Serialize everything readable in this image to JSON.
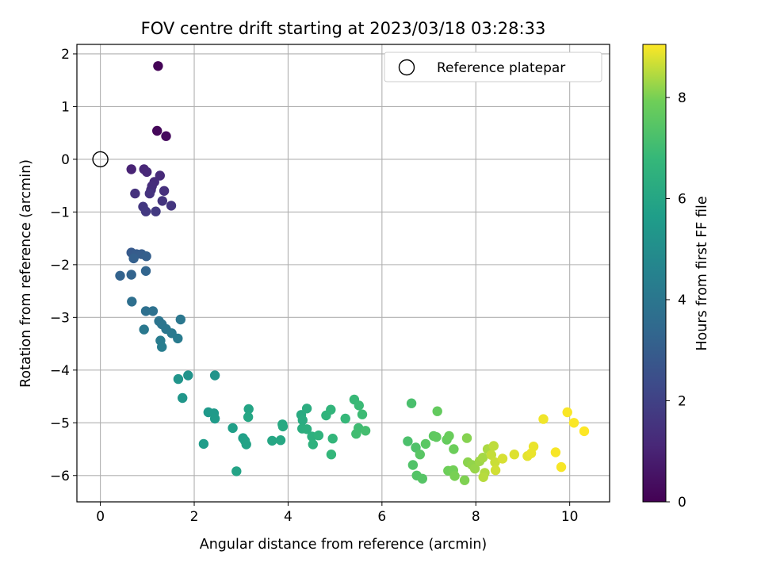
{
  "chart_data": {
    "type": "scatter",
    "title": "FOV centre drift starting at 2023/03/18 03:28:33",
    "xlabel": "Angular distance from reference (arcmin)",
    "ylabel": "Rotation from reference (arcmin)",
    "xlim": [
      -0.5,
      10.85
    ],
    "ylim": [
      -6.5,
      2.18
    ],
    "xticks": [
      0,
      2,
      4,
      6,
      8,
      10
    ],
    "yticks": [
      2,
      1,
      0,
      -1,
      -2,
      -3,
      -4,
      -5,
      -6
    ],
    "grid": true,
    "legend": {
      "position": "top-right",
      "entries": [
        "Reference platepar"
      ]
    },
    "reference_point": {
      "x": 0,
      "y": 0,
      "marker": "open-circle"
    },
    "colorbar": {
      "label": "Hours from first FF file",
      "colormap": "viridis",
      "range": [
        0,
        9.05
      ],
      "ticks": [
        0,
        2,
        4,
        6,
        8
      ]
    },
    "points": [
      [
        1.23,
        1.77,
        0.1
      ],
      [
        1.21,
        0.54,
        0.2
      ],
      [
        1.4,
        0.44,
        0.3
      ],
      [
        0.66,
        -0.19,
        1.0
      ],
      [
        0.93,
        -0.19,
        1.1
      ],
      [
        0.99,
        -0.24,
        1.15
      ],
      [
        1.27,
        -0.31,
        1.2
      ],
      [
        1.15,
        -0.43,
        1.25
      ],
      [
        1.1,
        -0.51,
        1.3
      ],
      [
        1.08,
        -0.58,
        1.35
      ],
      [
        1.36,
        -0.6,
        1.4
      ],
      [
        0.74,
        -0.65,
        1.45
      ],
      [
        1.05,
        -0.65,
        1.5
      ],
      [
        1.32,
        -0.79,
        1.55
      ],
      [
        1.51,
        -0.88,
        1.6
      ],
      [
        0.91,
        -0.9,
        1.65
      ],
      [
        0.97,
        -0.99,
        1.7
      ],
      [
        1.18,
        -0.99,
        1.75
      ],
      [
        0.66,
        -1.77,
        2.9
      ],
      [
        0.77,
        -1.8,
        2.95
      ],
      [
        0.88,
        -1.8,
        3.0
      ],
      [
        0.98,
        -1.84,
        3.05
      ],
      [
        0.71,
        -1.88,
        3.1
      ],
      [
        0.42,
        -2.21,
        3.2
      ],
      [
        0.66,
        -2.19,
        3.25
      ],
      [
        0.97,
        -2.12,
        3.3
      ],
      [
        0.67,
        -2.7,
        3.7
      ],
      [
        0.97,
        -2.88,
        3.75
      ],
      [
        1.12,
        -2.88,
        3.8
      ],
      [
        1.25,
        -3.07,
        3.9
      ],
      [
        1.31,
        -3.13,
        3.95
      ],
      [
        1.4,
        -3.22,
        4.0
      ],
      [
        1.71,
        -3.04,
        4.05
      ],
      [
        0.93,
        -3.23,
        4.1
      ],
      [
        1.52,
        -3.3,
        4.15
      ],
      [
        1.65,
        -3.4,
        4.2
      ],
      [
        1.28,
        -3.44,
        4.25
      ],
      [
        1.31,
        -3.56,
        4.3
      ],
      [
        1.87,
        -4.1,
        5.2
      ],
      [
        2.44,
        -4.1,
        5.25
      ],
      [
        1.66,
        -4.17,
        5.3
      ],
      [
        1.75,
        -4.53,
        5.35
      ],
      [
        2.3,
        -4.8,
        5.45
      ],
      [
        2.42,
        -4.82,
        5.5
      ],
      [
        2.44,
        -4.92,
        5.55
      ],
      [
        2.2,
        -5.4,
        5.6
      ],
      [
        2.82,
        -5.1,
        5.7
      ],
      [
        3.04,
        -5.29,
        5.75
      ],
      [
        3.08,
        -5.34,
        5.8
      ],
      [
        3.11,
        -5.41,
        5.85
      ],
      [
        2.9,
        -5.92,
        5.9
      ],
      [
        3.16,
        -4.74,
        5.95
      ],
      [
        3.15,
        -4.89,
        6.0
      ],
      [
        3.66,
        -5.34,
        6.0
      ],
      [
        3.84,
        -5.33,
        6.05
      ],
      [
        3.88,
        -5.03,
        6.1
      ],
      [
        3.89,
        -5.07,
        6.15
      ],
      [
        4.28,
        -4.85,
        6.2
      ],
      [
        4.31,
        -4.95,
        6.25
      ],
      [
        4.4,
        -4.73,
        6.3
      ],
      [
        4.3,
        -5.11,
        6.35
      ],
      [
        4.4,
        -5.12,
        6.4
      ],
      [
        4.51,
        -5.26,
        6.45
      ],
      [
        4.53,
        -5.41,
        6.5
      ],
      [
        4.65,
        -5.24,
        6.55
      ],
      [
        4.81,
        -4.86,
        6.6
      ],
      [
        4.91,
        -4.75,
        6.65
      ],
      [
        4.95,
        -5.3,
        6.7
      ],
      [
        4.92,
        -5.6,
        6.75
      ],
      [
        5.22,
        -4.92,
        6.8
      ],
      [
        5.41,
        -4.56,
        6.85
      ],
      [
        5.51,
        -4.67,
        6.9
      ],
      [
        5.58,
        -4.84,
        6.95
      ],
      [
        5.5,
        -5.1,
        7.0
      ],
      [
        5.45,
        -5.21,
        7.05
      ],
      [
        5.65,
        -5.15,
        7.1
      ],
      [
        6.63,
        -4.63,
        7.2
      ],
      [
        6.55,
        -5.35,
        7.25
      ],
      [
        6.72,
        -5.47,
        7.3
      ],
      [
        6.66,
        -5.8,
        7.35
      ],
      [
        6.74,
        -6.0,
        7.4
      ],
      [
        6.86,
        -6.06,
        7.45
      ],
      [
        6.81,
        -5.6,
        7.5
      ],
      [
        6.93,
        -5.4,
        7.55
      ],
      [
        7.1,
        -5.25,
        7.6
      ],
      [
        7.16,
        -5.27,
        7.65
      ],
      [
        7.18,
        -4.78,
        7.7
      ],
      [
        7.38,
        -5.32,
        7.75
      ],
      [
        7.43,
        -5.25,
        7.8
      ],
      [
        7.53,
        -5.5,
        7.85
      ],
      [
        7.41,
        -5.91,
        7.9
      ],
      [
        7.52,
        -5.9,
        7.95
      ],
      [
        7.55,
        -6.01,
        8.0
      ],
      [
        7.76,
        -6.09,
        8.05
      ],
      [
        7.81,
        -5.29,
        8.1
      ],
      [
        7.83,
        -5.75,
        8.15
      ],
      [
        7.92,
        -5.8,
        8.2
      ],
      [
        7.98,
        -5.87,
        8.25
      ],
      [
        8.08,
        -5.73,
        8.3
      ],
      [
        8.15,
        -5.66,
        8.35
      ],
      [
        8.25,
        -5.5,
        8.4
      ],
      [
        8.19,
        -5.95,
        8.45
      ],
      [
        8.16,
        -6.03,
        8.5
      ],
      [
        8.38,
        -5.44,
        8.55
      ],
      [
        8.33,
        -5.61,
        8.6
      ],
      [
        8.41,
        -5.75,
        8.65
      ],
      [
        8.42,
        -5.9,
        8.7
      ],
      [
        8.57,
        -5.68,
        8.75
      ],
      [
        8.82,
        -5.6,
        8.8
      ],
      [
        9.1,
        -5.63,
        8.85
      ],
      [
        9.23,
        -5.45,
        8.9
      ],
      [
        9.18,
        -5.58,
        8.9
      ],
      [
        9.44,
        -4.93,
        8.95
      ],
      [
        9.7,
        -5.56,
        9.0
      ],
      [
        9.82,
        -5.84,
        9.0
      ],
      [
        9.95,
        -4.8,
        9.02
      ],
      [
        10.09,
        -5.0,
        9.03
      ],
      [
        10.31,
        -5.16,
        9.05
      ]
    ]
  }
}
